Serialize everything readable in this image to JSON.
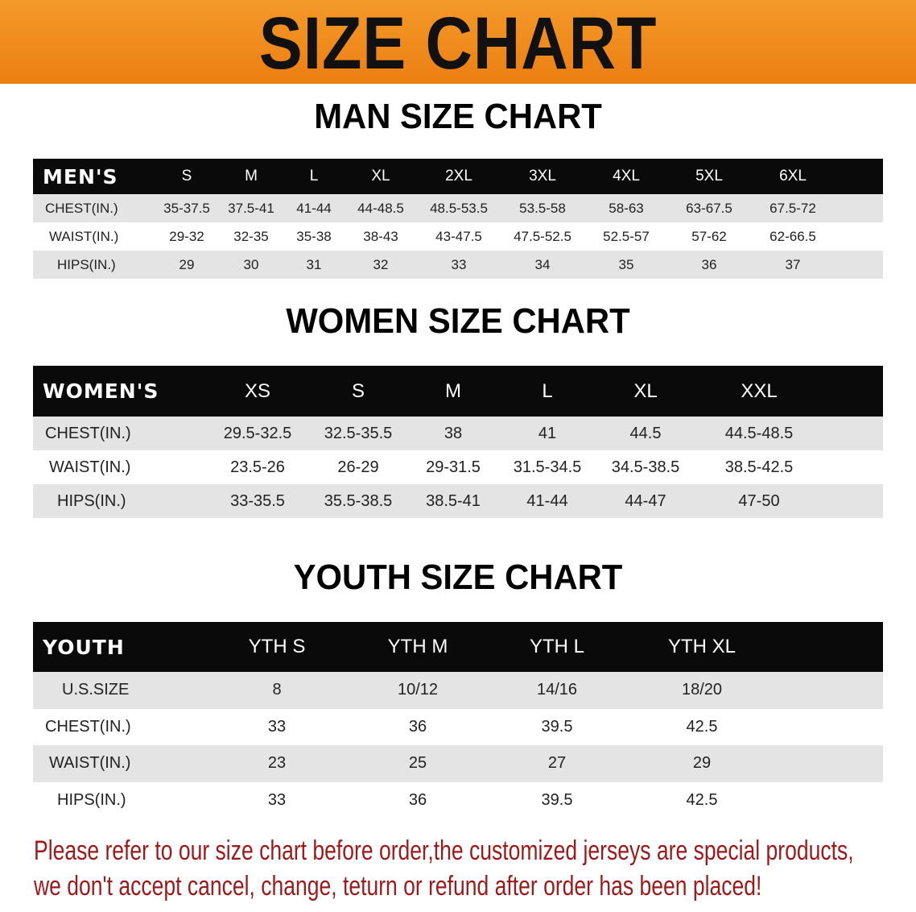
{
  "banner": {
    "title": "SIZE CHART",
    "color": "#ee8518"
  },
  "men": {
    "title": "MAN SIZE CHART",
    "header_label": "MEN'S",
    "sizes": [
      "S",
      "M",
      "L",
      "XL",
      "2XL",
      "3XL",
      "4XL",
      "5XL",
      "6XL"
    ],
    "rows": [
      {
        "label": "CHEST(IN.)",
        "values": [
          "35-37.5",
          "37.5-41",
          "41-44",
          "44-48.5",
          "48.5-53.5",
          "53.5-58",
          "58-63",
          "63-67.5",
          "67.5-72"
        ]
      },
      {
        "label": "WAIST(IN.)",
        "values": [
          "29-32",
          "32-35",
          "35-38",
          "38-43",
          "43-47.5",
          "47.5-52.5",
          "52.5-57",
          "57-62",
          "62-66.5"
        ]
      },
      {
        "label": "HIPS(IN.)",
        "values": [
          "29",
          "30",
          "31",
          "32",
          "33",
          "34",
          "35",
          "36",
          "37"
        ]
      }
    ]
  },
  "women": {
    "title": "WOMEN SIZE CHART",
    "header_label": "WOMEN'S",
    "sizes": [
      "XS",
      "S",
      "M",
      "L",
      "XL",
      "XXL"
    ],
    "rows": [
      {
        "label": "CHEST(IN.)",
        "values": [
          "29.5-32.5",
          "32.5-35.5",
          "38",
          "41",
          "44.5",
          "44.5-48.5"
        ]
      },
      {
        "label": "WAIST(IN.)",
        "values": [
          "23.5-26",
          "26-29",
          "29-31.5",
          "31.5-34.5",
          "34.5-38.5",
          "38.5-42.5"
        ]
      },
      {
        "label": "HIPS(IN.)",
        "values": [
          "33-35.5",
          "35.5-38.5",
          "38.5-41",
          "41-44",
          "44-47",
          "47-50"
        ]
      }
    ]
  },
  "youth": {
    "title": "YOUTH SIZE CHART",
    "header_label": "YOUTH",
    "sizes": [
      "YTH S",
      "YTH M",
      "YTH L",
      "YTH XL"
    ],
    "rows": [
      {
        "label": "U.S.SIZE",
        "values": [
          "8",
          "10/12",
          "14/16",
          "18/20"
        ]
      },
      {
        "label": "CHEST(IN.)",
        "values": [
          "33",
          "36",
          "39.5",
          "42.5"
        ]
      },
      {
        "label": "WAIST(IN.)",
        "values": [
          "23",
          "25",
          "27",
          "29"
        ]
      },
      {
        "label": "HIPS(IN.)",
        "values": [
          "33",
          "36",
          "39.5",
          "42.5"
        ]
      }
    ]
  },
  "notice": {
    "line1": "Please refer to our size chart before order,the customized jerseys are special products,",
    "line2": "we don't accept cancel, change, teturn or refund after order has been placed!",
    "color": "#9e1a1a"
  }
}
